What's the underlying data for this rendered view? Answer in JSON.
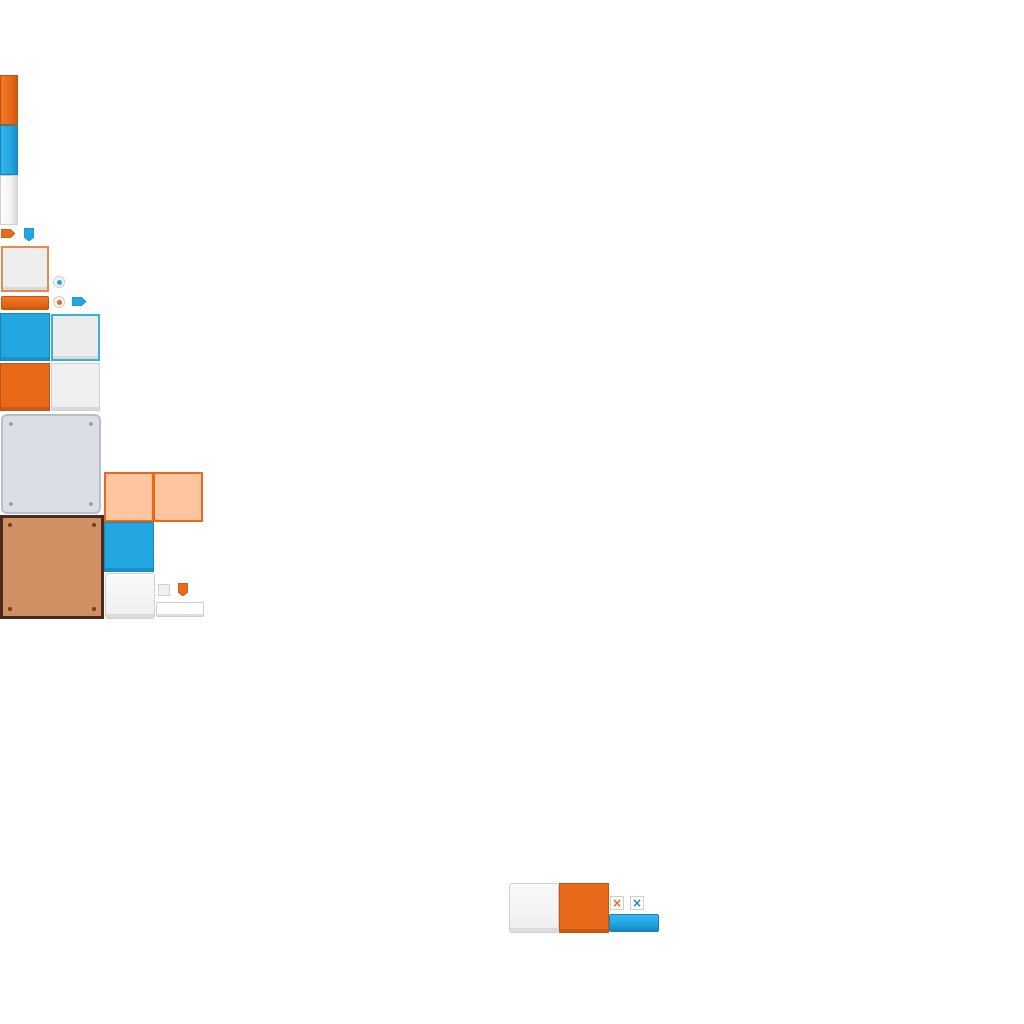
{
  "sheet": {
    "title": "",
    "description": ""
  },
  "colors": {
    "orange": "#e8691a",
    "blue": "#22a7e1",
    "white": "#f1f1f1",
    "metal": "#dbdfe5",
    "wood": "#d09064",
    "peach": "#ffc5a0",
    "background": "#ffffff"
  },
  "icons": {
    "close_orange": "×",
    "close_blue": "×",
    "arrow_tag": "tag-right-icon",
    "marker_tag": "tag-down-icon"
  }
}
